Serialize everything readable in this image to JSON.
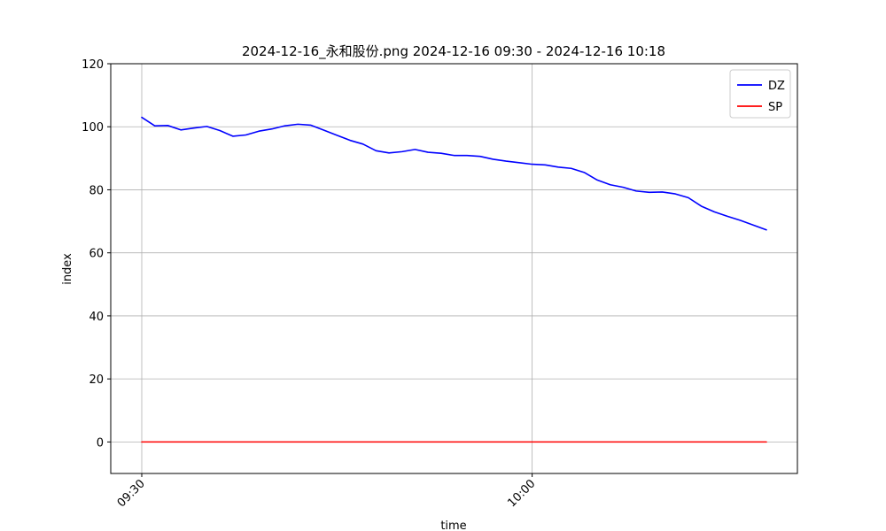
{
  "chart_data": {
    "type": "line",
    "title": "2024-12-16_永和股份.png 2024-12-16 09:30 - 2024-12-16 10:18",
    "xlabel": "time",
    "ylabel": "index",
    "x_range": [
      "09:30",
      "10:18"
    ],
    "x_ticks": [
      "09:30",
      "10:00"
    ],
    "ylim": [
      -10,
      120
    ],
    "y_ticks": [
      0,
      20,
      40,
      60,
      80,
      100,
      120
    ],
    "grid": true,
    "legend": "top-right",
    "x": [
      "09:30",
      "09:31",
      "09:32",
      "09:33",
      "09:34",
      "09:35",
      "09:36",
      "09:37",
      "09:38",
      "09:39",
      "09:40",
      "09:41",
      "09:42",
      "09:43",
      "09:44",
      "09:45",
      "09:46",
      "09:47",
      "09:48",
      "09:49",
      "09:50",
      "09:51",
      "09:52",
      "09:53",
      "09:54",
      "09:55",
      "09:56",
      "09:57",
      "09:58",
      "09:59",
      "10:00",
      "10:01",
      "10:02",
      "10:03",
      "10:04",
      "10:05",
      "10:06",
      "10:07",
      "10:08",
      "10:09",
      "10:10",
      "10:11",
      "10:12",
      "10:13",
      "10:14",
      "10:15",
      "10:16",
      "10:17",
      "10:18"
    ],
    "series": [
      {
        "name": "DZ",
        "color": "#0000ff",
        "values": [
          103.0,
          100.3,
          100.4,
          99.0,
          99.6,
          100.1,
          98.8,
          97.0,
          97.4,
          98.6,
          99.3,
          100.3,
          100.8,
          100.5,
          98.9,
          97.3,
          95.7,
          94.5,
          92.4,
          91.7,
          92.1,
          92.8,
          91.9,
          91.6,
          90.9,
          90.9,
          90.6,
          89.7,
          89.1,
          88.6,
          88.1,
          87.9,
          87.2,
          86.8,
          85.5,
          83.1,
          81.6,
          80.8,
          79.6,
          79.2,
          79.3,
          78.7,
          77.5,
          74.8,
          73.0,
          71.6,
          70.3,
          68.8,
          67.3
        ]
      },
      {
        "name": "SP",
        "color": "#ff0000",
        "values": [
          0,
          0,
          0,
          0,
          0,
          0,
          0,
          0,
          0,
          0,
          0,
          0,
          0,
          0,
          0,
          0,
          0,
          0,
          0,
          0,
          0,
          0,
          0,
          0,
          0,
          0,
          0,
          0,
          0,
          0,
          0,
          0,
          0,
          0,
          0,
          0,
          0,
          0,
          0,
          0,
          0,
          0,
          0,
          0,
          0,
          0,
          0,
          0,
          0
        ]
      }
    ]
  }
}
